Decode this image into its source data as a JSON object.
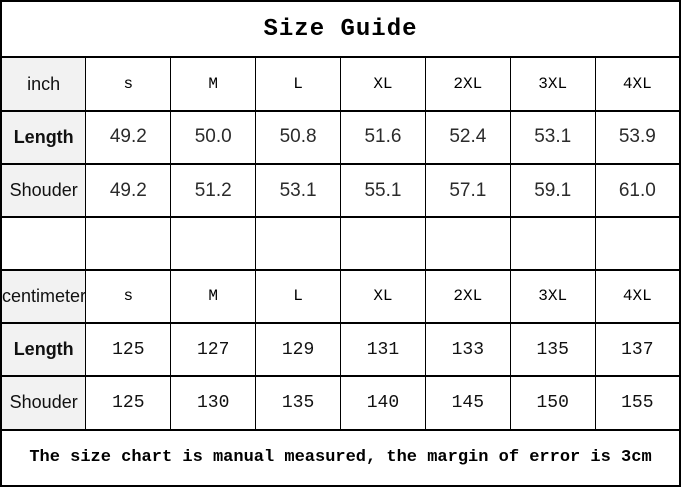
{
  "title": "Size Guide",
  "footer": "The size chart is manual measured, the margin of error is 3cm",
  "colors": {
    "border": "#000000",
    "label_background": "#f2f2f2",
    "background": "#ffffff"
  },
  "table": {
    "sections": [
      {
        "unit": "inch",
        "sizes": [
          "s",
          "M",
          "L",
          "XL",
          "2XL",
          "3XL",
          "4XL"
        ],
        "rows": [
          {
            "label": "Length",
            "values": [
              "49.2",
              "50.0",
              "50.8",
              "51.6",
              "52.4",
              "53.1",
              "53.9"
            ]
          },
          {
            "label": "Shouder",
            "values": [
              "49.2",
              "51.2",
              "53.1",
              "55.1",
              "57.1",
              "59.1",
              "61.0"
            ]
          }
        ]
      },
      {
        "unit": "centimeter",
        "sizes": [
          "s",
          "M",
          "L",
          "XL",
          "2XL",
          "3XL",
          "4XL"
        ],
        "rows": [
          {
            "label": "Length",
            "values": [
              "125",
              "127",
              "129",
              "131",
              "133",
              "135",
              "137"
            ]
          },
          {
            "label": "Shouder",
            "values": [
              "125",
              "130",
              "135",
              "140",
              "145",
              "150",
              "155"
            ]
          }
        ]
      }
    ]
  }
}
